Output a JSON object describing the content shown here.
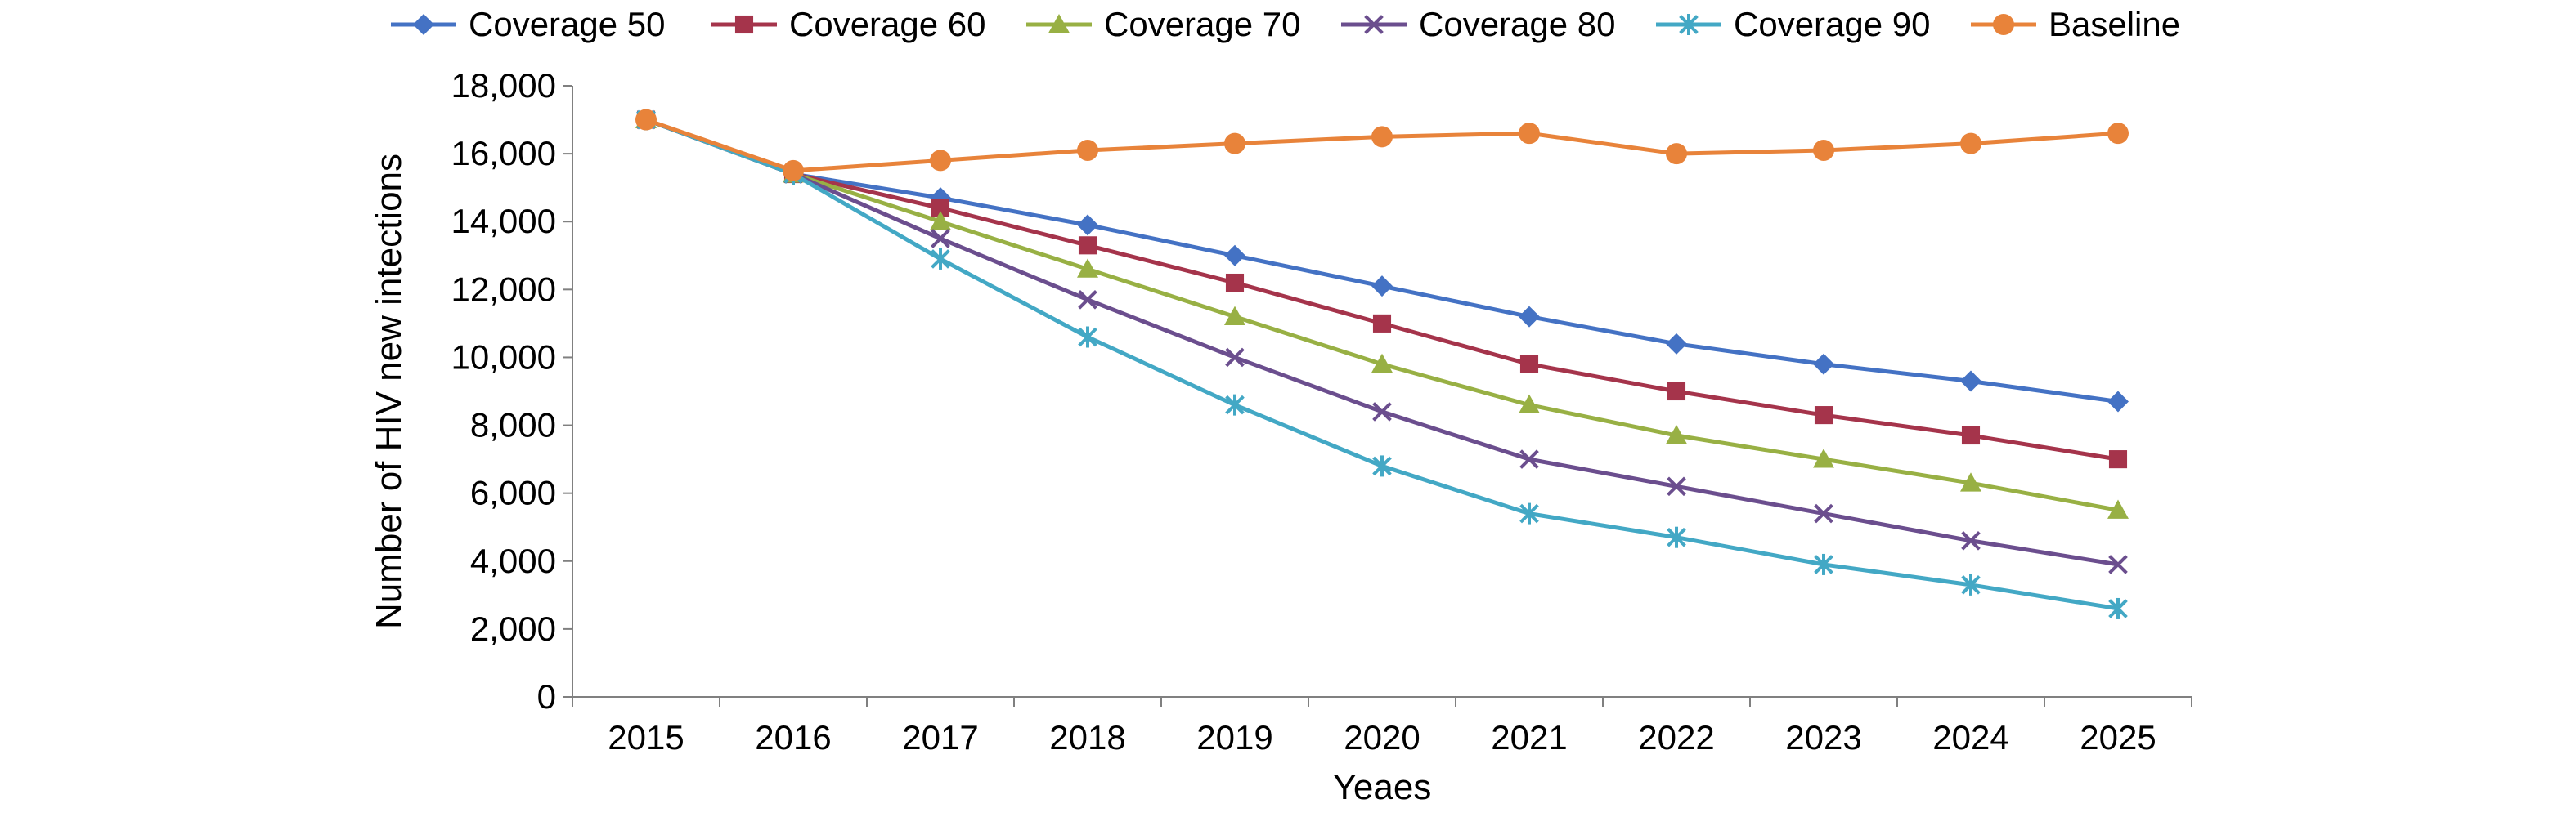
{
  "chart_data": {
    "type": "line",
    "xlabel": "Yeaes",
    "ylabel": "Number of HIV new intections",
    "categories": [
      "2015",
      "2016",
      "2017",
      "2018",
      "2019",
      "2020",
      "2021",
      "2022",
      "2023",
      "2024",
      "2025"
    ],
    "ylim": [
      0,
      18000
    ],
    "yticks": [
      0,
      2000,
      4000,
      6000,
      8000,
      10000,
      12000,
      14000,
      16000,
      18000
    ],
    "ytick_labels": [
      "0",
      "2,000",
      "4,000",
      "6,000",
      "8,000",
      "10,000",
      "12,000",
      "14,000",
      "16,000",
      "18,000"
    ],
    "grid": false,
    "legend_position": "top",
    "series": [
      {
        "name": "Coverage 50",
        "color": "#4472C4",
        "marker": "diamond",
        "values": [
          17000,
          15400,
          14700,
          13900,
          13000,
          12100,
          11200,
          10400,
          9800,
          9300,
          8700
        ]
      },
      {
        "name": "Coverage 60",
        "color": "#A5344B",
        "marker": "square",
        "values": [
          17000,
          15400,
          14400,
          13300,
          12200,
          11000,
          9800,
          9000,
          8300,
          7700,
          7000
        ]
      },
      {
        "name": "Coverage 70",
        "color": "#98B044",
        "marker": "triangle",
        "values": [
          17000,
          15400,
          14000,
          12600,
          11200,
          9800,
          8600,
          7700,
          7000,
          6300,
          5500
        ]
      },
      {
        "name": "Coverage 80",
        "color": "#6B4E8E",
        "marker": "x",
        "values": [
          17000,
          15400,
          13500,
          11700,
          10000,
          8400,
          7000,
          6200,
          5400,
          4600,
          3900
        ]
      },
      {
        "name": "Coverage 90",
        "color": "#43A8C5",
        "marker": "star",
        "values": [
          17000,
          15400,
          12900,
          10600,
          8600,
          6800,
          5400,
          4700,
          3900,
          3300,
          2600
        ]
      },
      {
        "name": "Baseline",
        "color": "#E8833A",
        "marker": "circle",
        "values": [
          17000,
          15500,
          15800,
          16100,
          16300,
          16500,
          16600,
          16000,
          16100,
          16300,
          16600
        ]
      }
    ]
  }
}
